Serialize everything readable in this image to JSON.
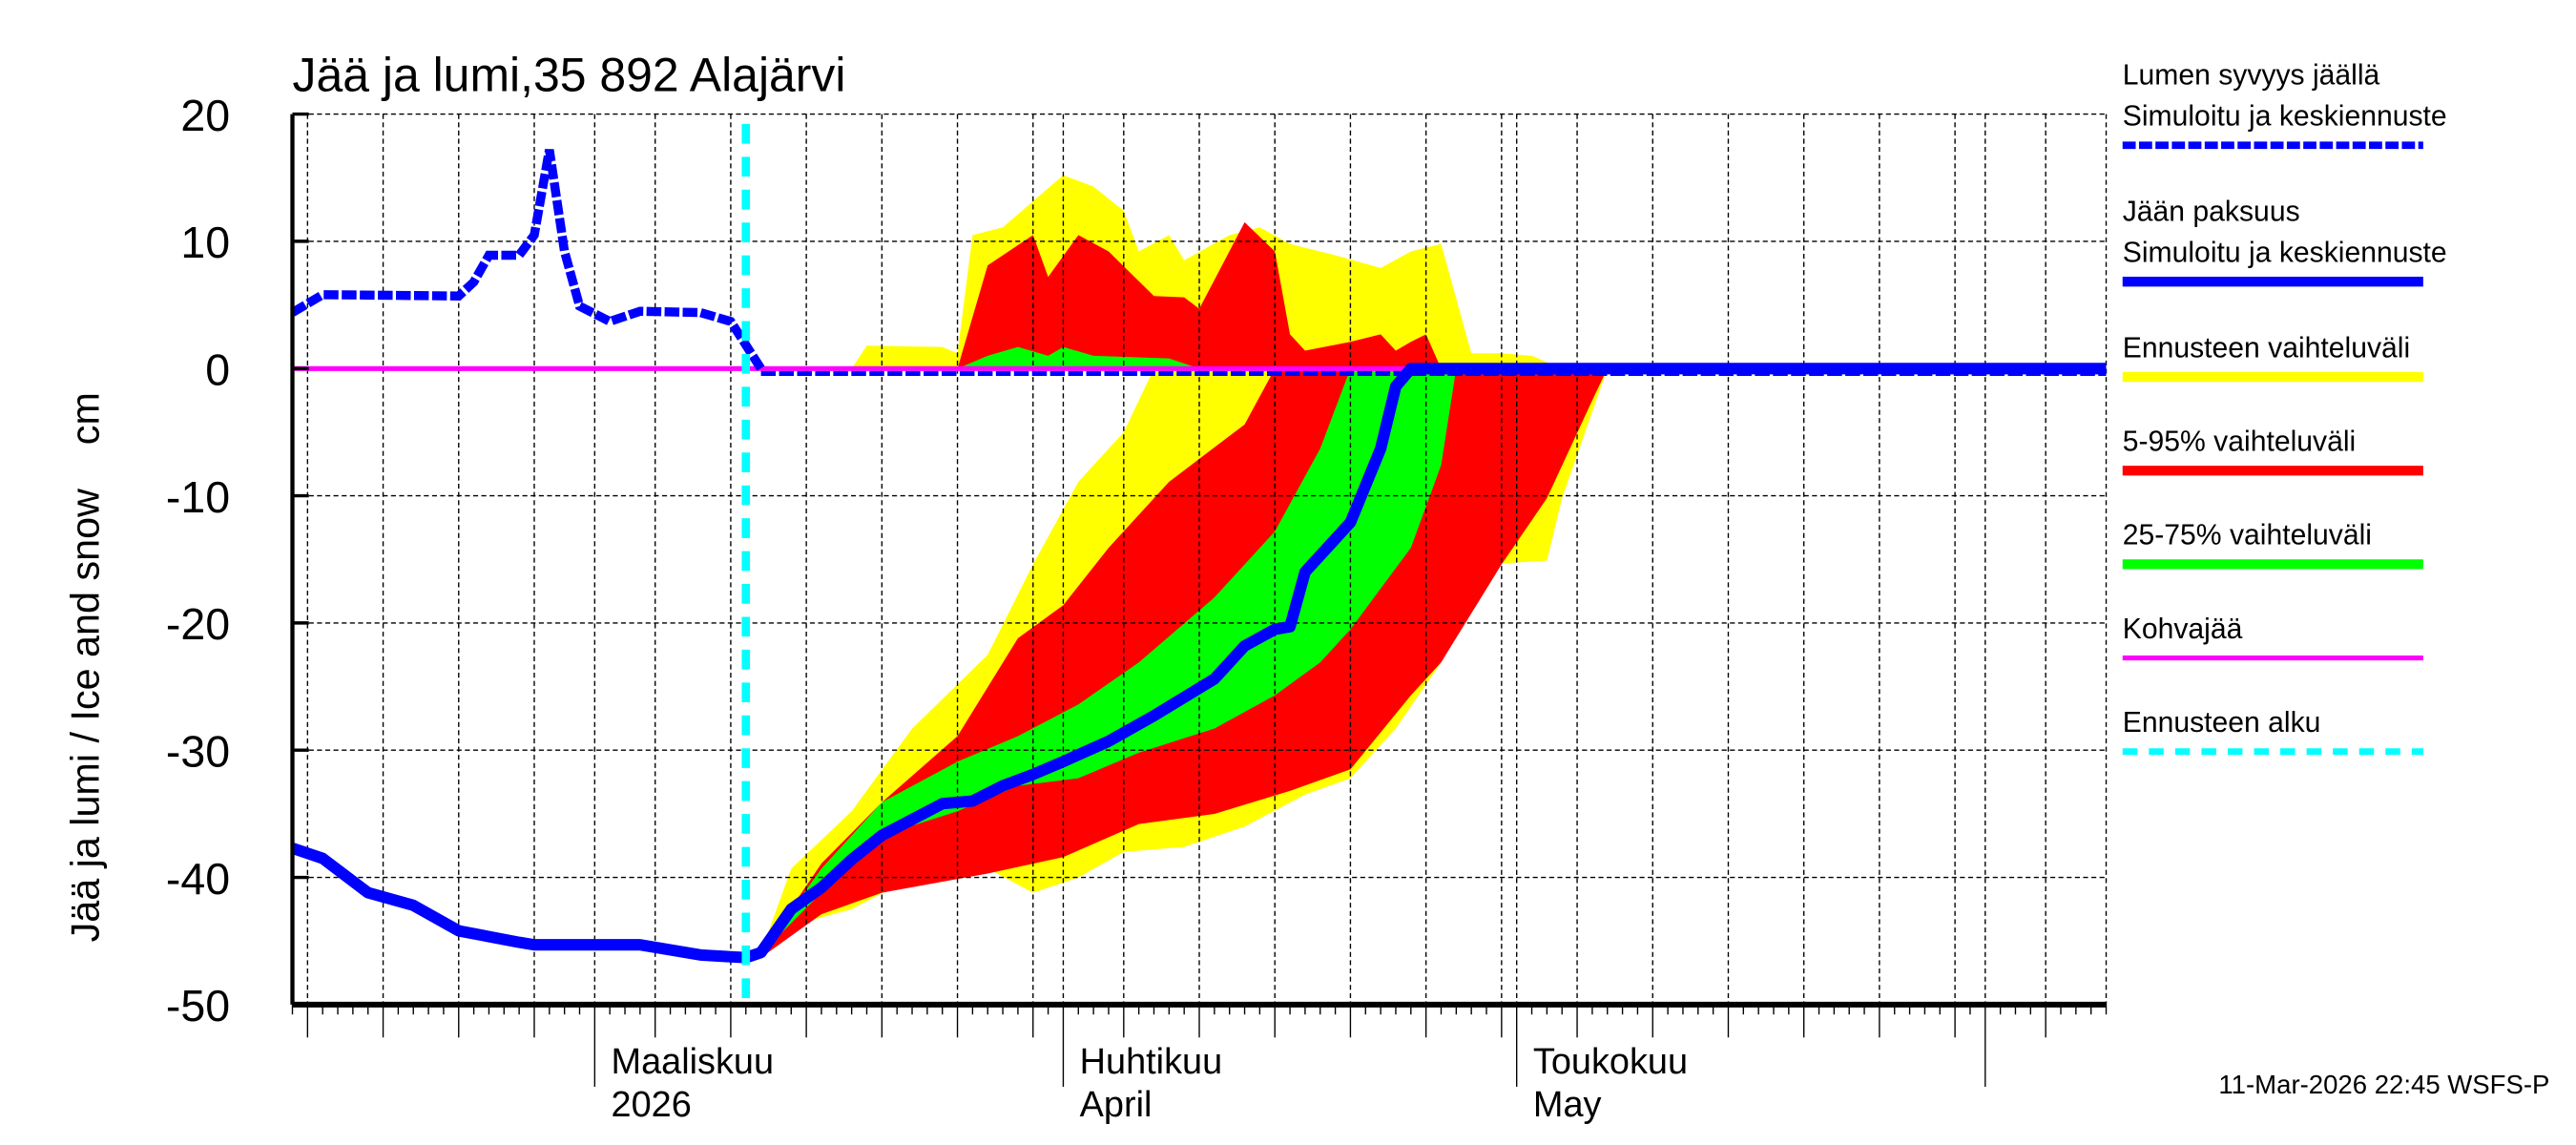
{
  "chart_data": {
    "type": "area",
    "title": "Jää ja lumi,35 892 Alajärvi",
    "ylabel": "Jää ja lumi / Ice and snow    cm",
    "ylim": [
      -50,
      20
    ],
    "yticks": [
      20,
      10,
      0,
      -10,
      -20,
      -30,
      -40,
      -50
    ],
    "xlim": [
      "2026-02-09",
      "2026-06-09"
    ],
    "x_month_labels": [
      {
        "date": "2026-03-01",
        "line1": "Maaliskuu",
        "line2": "2026"
      },
      {
        "date": "2026-04-01",
        "line1": "Huhtikuu",
        "line2": "April"
      },
      {
        "date": "2026-05-01",
        "line1": "Toukokuu",
        "line2": "May"
      }
    ],
    "grid": true,
    "legend_position": "right",
    "forecast_start": "2026-03-11",
    "legend": [
      {
        "line1": "Lumen syvyys jäällä",
        "line2": "Simuloitu ja keskiennuste",
        "color": "#0000ff",
        "style": "dashed"
      },
      {
        "line1": "Jään paksuus",
        "line2": "Simuloitu ja keskiennuste",
        "color": "#0000ff",
        "style": "solid"
      },
      {
        "line1": "Ennusteen vaihteluväli",
        "color": "#ffff00",
        "style": "band"
      },
      {
        "line1": "5-95% vaihteluväli",
        "color": "#ff0000",
        "style": "band"
      },
      {
        "line1": "25-75% vaihteluväli",
        "color": "#00ff00",
        "style": "band"
      },
      {
        "line1": "Kohvajää",
        "color": "#ff00ff",
        "style": "solid"
      },
      {
        "line1": "Ennusteen alku",
        "color": "#00ffff",
        "style": "dashed"
      }
    ],
    "series": {
      "snow_depth": [
        [
          "2026-02-09",
          4.4
        ],
        [
          "2026-02-11",
          5.8
        ],
        [
          "2026-02-20",
          5.7
        ],
        [
          "2026-02-21",
          6.8
        ],
        [
          "2026-02-22",
          8.9
        ],
        [
          "2026-02-24",
          8.9
        ],
        [
          "2026-02-25",
          10.5
        ],
        [
          "2026-02-26",
          17.2
        ],
        [
          "2026-02-27",
          9.2
        ],
        [
          "2026-02-28",
          4.9
        ],
        [
          "2026-03-02",
          3.7
        ],
        [
          "2026-03-04",
          4.5
        ],
        [
          "2026-03-08",
          4.4
        ],
        [
          "2026-03-10",
          3.7
        ],
        [
          "2026-03-12",
          0
        ],
        [
          "2026-06-09",
          0
        ]
      ],
      "ice_thickness": [
        [
          "2026-02-09",
          -37.7
        ],
        [
          "2026-02-11",
          -38.5
        ],
        [
          "2026-02-14",
          -41.2
        ],
        [
          "2026-02-17",
          -42.2
        ],
        [
          "2026-02-20",
          -44.2
        ],
        [
          "2026-02-24",
          -45.1
        ],
        [
          "2026-02-25",
          -45.3
        ],
        [
          "2026-03-04",
          -45.3
        ],
        [
          "2026-03-08",
          -46.1
        ],
        [
          "2026-03-11",
          -46.3
        ],
        [
          "2026-03-12",
          -45.9
        ],
        [
          "2026-03-14",
          -42.5
        ],
        [
          "2026-03-16",
          -40.8
        ],
        [
          "2026-03-18",
          -38.6
        ],
        [
          "2026-03-20",
          -36.7
        ],
        [
          "2026-03-24",
          -34.2
        ],
        [
          "2026-03-26",
          -34.0
        ],
        [
          "2026-03-28",
          -32.8
        ],
        [
          "2026-03-30",
          -31.9
        ],
        [
          "2026-04-01",
          -30.9
        ],
        [
          "2026-04-04",
          -29.3
        ],
        [
          "2026-04-07",
          -27.3
        ],
        [
          "2026-04-11",
          -24.4
        ],
        [
          "2026-04-13",
          -21.8
        ],
        [
          "2026-04-15",
          -20.5
        ],
        [
          "2026-04-16",
          -20.3
        ],
        [
          "2026-04-17",
          -16.0
        ],
        [
          "2026-04-20",
          -12.1
        ],
        [
          "2026-04-22",
          -6.3
        ],
        [
          "2026-04-23",
          -1.4
        ],
        [
          "2026-04-24",
          0
        ],
        [
          "2026-06-09",
          0
        ]
      ],
      "kohvajaa": [
        [
          "2026-02-09",
          0
        ],
        [
          "2026-06-09",
          0
        ]
      ]
    },
    "bands": [
      {
        "name": "Ennusteen vaihteluväli",
        "color": "#ffff00",
        "snow_upper": [
          [
            "2026-03-18",
            0
          ],
          [
            "2026-03-19",
            1.8
          ],
          [
            "2026-03-24",
            1.7
          ],
          [
            "2026-03-25",
            1.2
          ],
          [
            "2026-03-26",
            10.5
          ],
          [
            "2026-03-28",
            11.1
          ],
          [
            "2026-04-01",
            15.2
          ],
          [
            "2026-04-03",
            14.3
          ],
          [
            "2026-04-05",
            12.4
          ],
          [
            "2026-04-06",
            9.2
          ],
          [
            "2026-04-08",
            10.5
          ],
          [
            "2026-04-09",
            8.5
          ],
          [
            "2026-04-12",
            10.5
          ],
          [
            "2026-04-14",
            11.1
          ],
          [
            "2026-04-16",
            9.8
          ],
          [
            "2026-04-19",
            8.9
          ],
          [
            "2026-04-22",
            7.9
          ],
          [
            "2026-04-24",
            9.2
          ],
          [
            "2026-04-26",
            9.8
          ],
          [
            "2026-04-28",
            1.2
          ],
          [
            "2026-04-30",
            1.2
          ],
          [
            "2026-05-02",
            1.0
          ],
          [
            "2026-05-04",
            0
          ]
        ],
        "ice_lower": [
          [
            "2026-03-12",
            -46.3
          ],
          [
            "2026-03-14",
            -43.8
          ],
          [
            "2026-03-18",
            -42.5
          ],
          [
            "2026-03-22",
            -40.0
          ],
          [
            "2026-03-27",
            -39.3
          ],
          [
            "2026-03-30",
            -41.2
          ],
          [
            "2026-04-02",
            -40.0
          ],
          [
            "2026-04-05",
            -38.0
          ],
          [
            "2026-04-09",
            -37.6
          ],
          [
            "2026-04-13",
            -36.0
          ],
          [
            "2026-04-17",
            -33.5
          ],
          [
            "2026-04-20",
            -32.2
          ],
          [
            "2026-04-23",
            -28.3
          ],
          [
            "2026-04-26",
            -23.1
          ],
          [
            "2026-04-29",
            -15.4
          ],
          [
            "2026-05-03",
            -15.1
          ],
          [
            "2026-05-04",
            -10.2
          ],
          [
            "2026-05-07",
            0
          ]
        ],
        "ice_upper": [
          [
            "2026-03-12",
            -45.9
          ],
          [
            "2026-03-14",
            -39.3
          ],
          [
            "2026-03-18",
            -34.8
          ],
          [
            "2026-03-22",
            -28.3
          ],
          [
            "2026-03-27",
            -22.5
          ],
          [
            "2026-03-30",
            -15.4
          ],
          [
            "2026-04-02",
            -8.9
          ],
          [
            "2026-04-05",
            -5.0
          ],
          [
            "2026-04-07",
            0
          ]
        ]
      },
      {
        "name": "5-95% vaihteluväli",
        "color": "#ff0000",
        "snow_upper": [
          [
            "2026-03-25",
            0
          ],
          [
            "2026-03-27",
            8.1
          ],
          [
            "2026-03-30",
            10.5
          ],
          [
            "2026-03-31",
            7.2
          ],
          [
            "2026-04-02",
            10.5
          ],
          [
            "2026-04-04",
            9.2
          ],
          [
            "2026-04-07",
            5.7
          ],
          [
            "2026-04-09",
            5.6
          ],
          [
            "2026-04-10",
            4.7
          ],
          [
            "2026-04-13",
            11.5
          ],
          [
            "2026-04-15",
            9.2
          ],
          [
            "2026-04-16",
            2.7
          ],
          [
            "2026-04-17",
            1.4
          ],
          [
            "2026-04-20",
            2.1
          ],
          [
            "2026-04-22",
            2.7
          ],
          [
            "2026-04-23",
            1.4
          ],
          [
            "2026-04-24",
            2.1
          ],
          [
            "2026-04-25",
            2.7
          ],
          [
            "2026-04-26",
            0
          ]
        ],
        "ice_lower": [
          [
            "2026-03-12",
            -46.3
          ],
          [
            "2026-03-16",
            -42.9
          ],
          [
            "2026-03-20",
            -41.2
          ],
          [
            "2026-03-27",
            -39.7
          ],
          [
            "2026-04-01",
            -38.4
          ],
          [
            "2026-04-06",
            -35.8
          ],
          [
            "2026-04-11",
            -35.0
          ],
          [
            "2026-04-16",
            -33.2
          ],
          [
            "2026-04-20",
            -31.5
          ],
          [
            "2026-04-24",
            -25.7
          ],
          [
            "2026-04-26",
            -23.1
          ],
          [
            "2026-04-30",
            -15.4
          ],
          [
            "2026-05-03",
            -10.2
          ],
          [
            "2026-05-06",
            -2.5
          ],
          [
            "2026-05-07",
            0
          ]
        ],
        "ice_upper": [
          [
            "2026-03-12",
            -45.9
          ],
          [
            "2026-03-16",
            -38.9
          ],
          [
            "2026-03-20",
            -34.1
          ],
          [
            "2026-03-25",
            -28.9
          ],
          [
            "2026-03-29",
            -21.2
          ],
          [
            "2026-04-01",
            -18.6
          ],
          [
            "2026-04-04",
            -14.1
          ],
          [
            "2026-04-08",
            -8.9
          ],
          [
            "2026-04-13",
            -4.4
          ],
          [
            "2026-04-15",
            0
          ]
        ]
      },
      {
        "name": "25-75% vaihteluväli",
        "color": "#00ff00",
        "snow_upper": [
          [
            "2026-03-25",
            0
          ],
          [
            "2026-03-27",
            1.0
          ],
          [
            "2026-03-29",
            1.7
          ],
          [
            "2026-03-31",
            1.0
          ],
          [
            "2026-04-01",
            1.7
          ],
          [
            "2026-04-03",
            1.0
          ],
          [
            "2026-04-08",
            0.8
          ],
          [
            "2026-04-10",
            0
          ]
        ],
        "ice_lower": [
          [
            "2026-03-12",
            -46.0
          ],
          [
            "2026-03-16",
            -41.2
          ],
          [
            "2026-03-20",
            -36.7
          ],
          [
            "2026-03-25",
            -34.8
          ],
          [
            "2026-03-29",
            -32.8
          ],
          [
            "2026-04-02",
            -32.2
          ],
          [
            "2026-04-06",
            -30.2
          ],
          [
            "2026-04-11",
            -28.3
          ],
          [
            "2026-04-15",
            -25.7
          ],
          [
            "2026-04-18",
            -23.1
          ],
          [
            "2026-04-20",
            -20.5
          ],
          [
            "2026-04-24",
            -14.1
          ],
          [
            "2026-04-26",
            -7.6
          ],
          [
            "2026-04-27",
            0
          ]
        ],
        "ice_upper": [
          [
            "2026-03-12",
            -45.9
          ],
          [
            "2026-03-16",
            -39.3
          ],
          [
            "2026-03-20",
            -34.1
          ],
          [
            "2026-03-25",
            -30.9
          ],
          [
            "2026-03-29",
            -28.9
          ],
          [
            "2026-04-02",
            -26.4
          ],
          [
            "2026-04-06",
            -23.1
          ],
          [
            "2026-04-11",
            -18.0
          ],
          [
            "2026-04-15",
            -12.8
          ],
          [
            "2026-04-18",
            -6.3
          ],
          [
            "2026-04-20",
            0
          ]
        ]
      }
    ]
  },
  "footer": "11-Mar-2026 22:45 WSFS-P"
}
